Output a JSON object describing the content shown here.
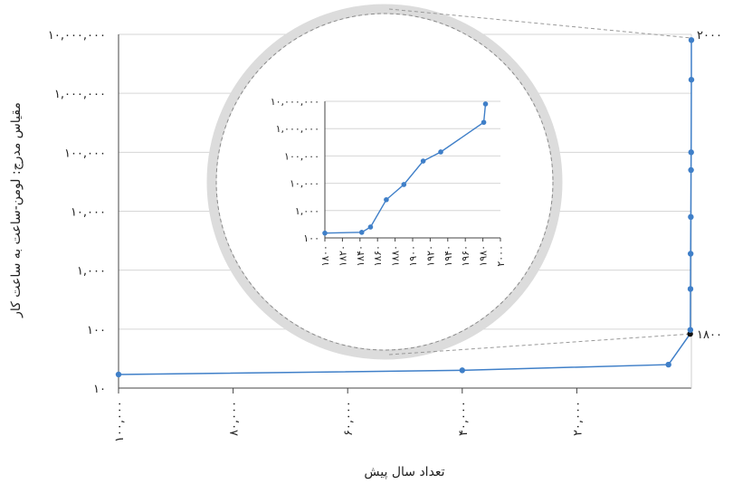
{
  "chart_data": [
    {
      "type": "line",
      "name": "main",
      "xlabel": "تعداد سال پیش",
      "ylabel": "مقیاس مدرج: لومن-ساعت به ساعت کار",
      "xscale": "linear",
      "yscale": "log",
      "xlim": [
        100000,
        0
      ],
      "ylim": [
        10,
        10000000
      ],
      "xticks": [
        100000,
        80000,
        60000,
        40000,
        20000
      ],
      "xtick_labels": [
        "۱۰۰,۰۰۰",
        "۸۰,۰۰۰",
        "۶۰,۰۰۰",
        "۴۰,۰۰۰",
        "۲۰,۰۰۰"
      ],
      "yticks": [
        10,
        100,
        1000,
        10000,
        100000,
        1000000,
        10000000
      ],
      "ytick_labels": [
        "۱۰",
        "۱۰۰",
        "۱,۰۰۰",
        "۱۰,۰۰۰",
        "۱۰۰,۰۰۰",
        "۱,۰۰۰,۰۰۰",
        "۱۰,۰۰۰,۰۰۰"
      ],
      "grid": true,
      "color": "#3f7fc8",
      "highlight_color": "#111111",
      "points": [
        {
          "x": 100000,
          "y": 17
        },
        {
          "x": 40000,
          "y": 20
        },
        {
          "x": 4000,
          "y": 25
        },
        {
          "x": 218,
          "y": 83,
          "highlight": true
        },
        {
          "x": 178,
          "y": 97
        },
        {
          "x": 158,
          "y": 480
        },
        {
          "x": 130,
          "y": 1900
        },
        {
          "x": 98,
          "y": 8000
        },
        {
          "x": 60,
          "y": 50000
        },
        {
          "x": 40,
          "y": 100000
        },
        {
          "x": 0,
          "y": 1700000
        },
        {
          "x": 0,
          "y": 8000000
        }
      ],
      "annotations": [
        {
          "text": "۱۸۰۰",
          "at_y": 83
        },
        {
          "text": "۲۰۰۰",
          "at_y": 10000000
        }
      ]
    },
    {
      "type": "line",
      "name": "inset",
      "yscale": "log",
      "xlim": [
        1800,
        2000
      ],
      "ylim": [
        100,
        10000000
      ],
      "xticks": [
        1800,
        1820,
        1840,
        1860,
        1880,
        1900,
        1920,
        1940,
        1960,
        1980,
        2000
      ],
      "xtick_labels": [
        "۱۸۰۰",
        "۱۸۲۰",
        "۱۸۴۰",
        "۱۸۶۰",
        "۱۸۸۰",
        "۱۹۰۰",
        "۱۹۲۰",
        "۱۹۴۰",
        "۱۹۶۰",
        "۱۹۸۰",
        "۲۰۰۰"
      ],
      "yticks": [
        100,
        1000,
        10000,
        100000,
        1000000,
        10000000
      ],
      "ytick_labels": [
        "۱۰۰",
        "۱,۰۰۰",
        "۱۰,۰۰۰",
        "۱۰۰,۰۰۰",
        "۱,۰۰۰,۰۰۰",
        "۱۰,۰۰۰,۰۰۰"
      ],
      "grid": true,
      "color": "#3f7fc8",
      "points": [
        {
          "x": 1800,
          "y": 150
        },
        {
          "x": 1842,
          "y": 160
        },
        {
          "x": 1852,
          "y": 250
        },
        {
          "x": 1870,
          "y": 2500
        },
        {
          "x": 1890,
          "y": 9000
        },
        {
          "x": 1912,
          "y": 65000
        },
        {
          "x": 1932,
          "y": 140000
        },
        {
          "x": 1981,
          "y": 1700000
        },
        {
          "x": 1983,
          "y": 8000000
        }
      ]
    }
  ]
}
